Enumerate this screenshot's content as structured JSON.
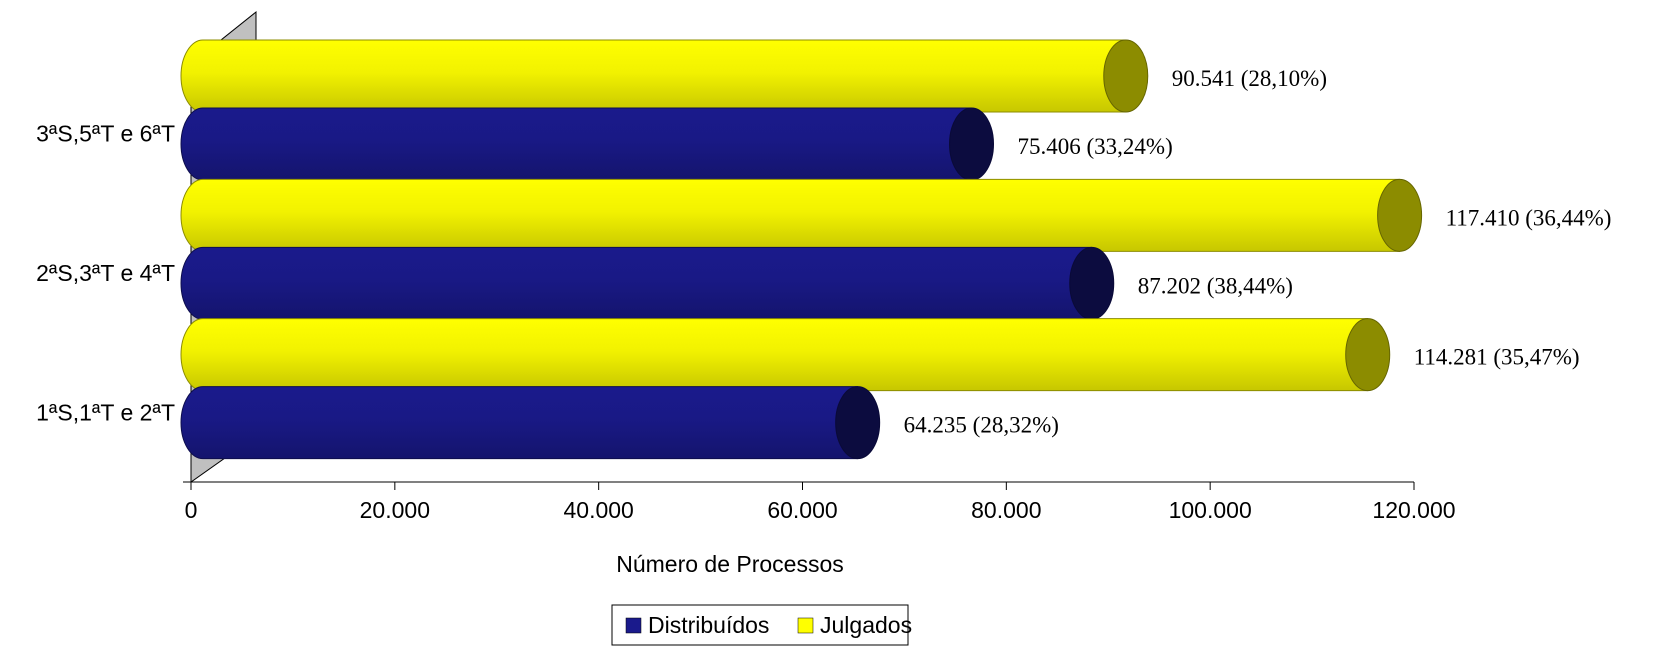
{
  "chart_data": {
    "type": "bar",
    "orientation": "horizontal",
    "style": "3d-cylinder",
    "categories": [
      "1ªS,1ªT e 2ªT",
      "2ªS,3ªT e 4ªT",
      "3ªS,5ªT e 6ªT"
    ],
    "series": [
      {
        "name": "Distribuídos",
        "color": "#1A1A8C",
        "values": [
          64235,
          87202,
          75406
        ],
        "labels": [
          "64.235 (28,32%)",
          "87.202 (38,44%)",
          "75.406 (33,24%)"
        ]
      },
      {
        "name": "Julgados",
        "color": "#FFFF00",
        "values": [
          114281,
          117410,
          90541
        ],
        "labels": [
          "114.281 (35,47%)",
          "117.410 (36,44%)",
          "90.541 (28,10%)"
        ]
      }
    ],
    "xlabel": "Número de Processos",
    "xlim": [
      0,
      120000
    ],
    "xticks": [
      0,
      20000,
      40000,
      60000,
      80000,
      100000,
      120000
    ],
    "xtick_labels": [
      "0",
      "20.000",
      "40.000",
      "60.000",
      "80.000",
      "100.000",
      "120.000"
    ],
    "legend_position": "bottom-center"
  }
}
